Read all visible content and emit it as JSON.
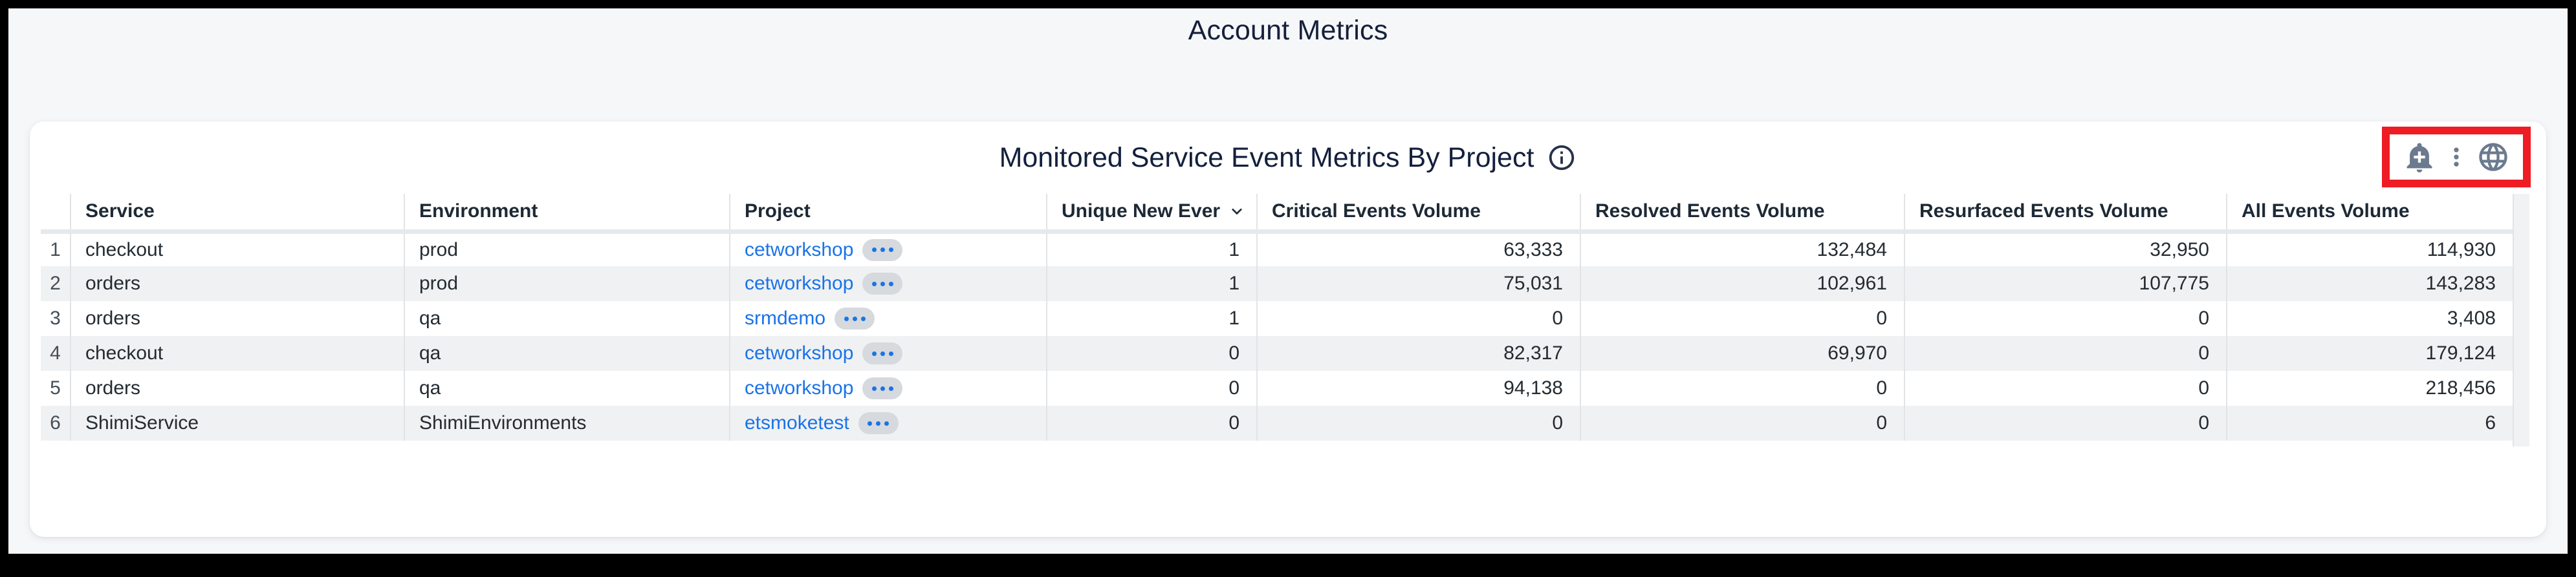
{
  "page": {
    "title": "Account Metrics"
  },
  "widget": {
    "title": "Monitored Service Event Metrics By Project",
    "toolbar": {
      "icons": [
        "add-alert-bell",
        "more-options-kebab",
        "globe"
      ],
      "highlight_color": "#ee1c24"
    }
  },
  "table": {
    "columns": [
      {
        "key": "index",
        "label": ""
      },
      {
        "key": "service",
        "label": "Service"
      },
      {
        "key": "environment",
        "label": "Environment"
      },
      {
        "key": "project",
        "label": "Project"
      },
      {
        "key": "unique_new_events",
        "label": "Unique New Ever",
        "sort": "desc"
      },
      {
        "key": "critical_events_volume",
        "label": "Critical Events Volume"
      },
      {
        "key": "resolved_events_volume",
        "label": "Resolved Events Volume"
      },
      {
        "key": "resurfaced_events_volume",
        "label": "Resurfaced Events Volume"
      },
      {
        "key": "all_events_volume",
        "label": "All Events Volume"
      }
    ],
    "rows": [
      {
        "index": "1",
        "service": "checkout",
        "environment": "prod",
        "project": "cetworkshop",
        "unique_new_events": "1",
        "critical_events_volume": "63,333",
        "resolved_events_volume": "132,484",
        "resurfaced_events_volume": "32,950",
        "all_events_volume": "114,930"
      },
      {
        "index": "2",
        "service": "orders",
        "environment": "prod",
        "project": "cetworkshop",
        "unique_new_events": "1",
        "critical_events_volume": "75,031",
        "resolved_events_volume": "102,961",
        "resurfaced_events_volume": "107,775",
        "all_events_volume": "143,283"
      },
      {
        "index": "3",
        "service": "orders",
        "environment": "qa",
        "project": "srmdemo",
        "unique_new_events": "1",
        "critical_events_volume": "0",
        "resolved_events_volume": "0",
        "resurfaced_events_volume": "0",
        "all_events_volume": "3,408"
      },
      {
        "index": "4",
        "service": "checkout",
        "environment": "qa",
        "project": "cetworkshop",
        "unique_new_events": "0",
        "critical_events_volume": "82,317",
        "resolved_events_volume": "69,970",
        "resurfaced_events_volume": "0",
        "all_events_volume": "179,124"
      },
      {
        "index": "5",
        "service": "orders",
        "environment": "qa",
        "project": "cetworkshop",
        "unique_new_events": "0",
        "critical_events_volume": "94,138",
        "resolved_events_volume": "0",
        "resurfaced_events_volume": "0",
        "all_events_volume": "218,456"
      },
      {
        "index": "6",
        "service": "ShimiService",
        "environment": "ShimiEnvironments",
        "project": "etsmoketest",
        "unique_new_events": "0",
        "critical_events_volume": "0",
        "resolved_events_volume": "0",
        "resurfaced_events_volume": "0",
        "all_events_volume": "6"
      }
    ]
  },
  "colors": {
    "link_blue": "#1a73e8",
    "zebra_row": "#f0f1f2",
    "icon_slate": "#6b7a8e",
    "highlight_red": "#ee1c24",
    "page_bg": "#f6f7f9",
    "title_text": "#15203a"
  }
}
